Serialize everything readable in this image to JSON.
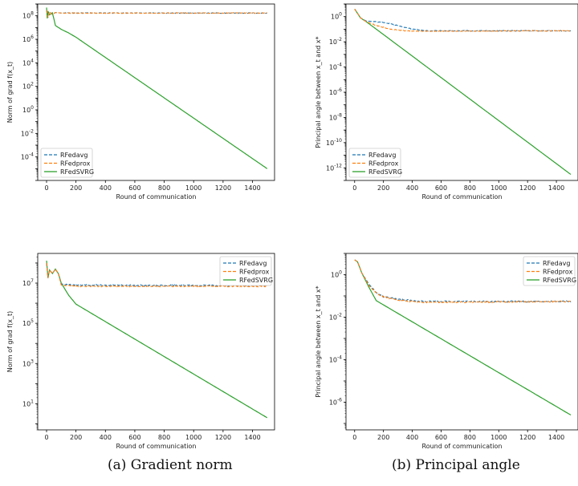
{
  "colors": {
    "RFedavg": "#1f77b4",
    "RFedprox": "#ff7f0e",
    "RFedSVRG": "#2ca02c"
  },
  "captions": {
    "a": "(a) Gradient norm",
    "b": "(b) Principal angle"
  },
  "chart_data": [
    {
      "type": "line",
      "xlabel": "Round of communication",
      "ylabel": "Norm of grad f(x_t)",
      "log_y": true,
      "xlim": [
        -60,
        1550
      ],
      "ylim": [
        1e-06,
        1000000000.0
      ],
      "xticks": [
        "0",
        "200",
        "400",
        "600",
        "800",
        "1000",
        "1200",
        "1400"
      ],
      "yticks": [
        "10^8",
        "10^6",
        "10^4",
        "10^2",
        "10^0",
        "10^-2",
        "10^-4"
      ],
      "legend": "bottom-left",
      "series": [
        {
          "name": "RFedavg",
          "style": "dashed",
          "x": [
            0,
            10,
            20,
            40,
            60,
            80,
            100,
            1500
          ],
          "y": [
            300000000.0,
            70000000.0,
            220000000.0,
            130000000.0,
            190000000.0,
            180000000.0,
            170000000.0,
            170000000.0
          ]
        },
        {
          "name": "RFedprox",
          "style": "dashed",
          "x": [
            0,
            10,
            20,
            40,
            60,
            80,
            100,
            1500
          ],
          "y": [
            300000000.0,
            70000000.0,
            220000000.0,
            130000000.0,
            190000000.0,
            180000000.0,
            170000000.0,
            170000000.0
          ]
        },
        {
          "name": "RFedSVRG",
          "style": "solid",
          "x": [
            0,
            5,
            10,
            20,
            40,
            60,
            100,
            150,
            200,
            1500
          ],
          "y": [
            500000000.0,
            60000000.0,
            250000000.0,
            120000000.0,
            180000000.0,
            15000000.0,
            7000000.0,
            3500000.0,
            1500000.0,
            1e-05
          ]
        }
      ]
    },
    {
      "type": "line",
      "xlabel": "Round of communication",
      "ylabel": "Principal angle between x_t and x*",
      "log_y": true,
      "xlim": [
        -60,
        1550
      ],
      "ylim": [
        1e-13,
        10
      ],
      "xticks": [
        "0",
        "200",
        "400",
        "600",
        "800",
        "1000",
        "1200",
        "1400"
      ],
      "yticks": [
        "10^0",
        "10^-2",
        "10^-4",
        "10^-6",
        "10^-8",
        "10^-10",
        "10^-12"
      ],
      "legend": "bottom-left",
      "series": [
        {
          "name": "RFedavg",
          "style": "dashed",
          "x": [
            0,
            40,
            80,
            200,
            300,
            400,
            500,
            1500
          ],
          "y": [
            4,
            0.8,
            0.45,
            0.35,
            0.2,
            0.1,
            0.075,
            0.075
          ]
        },
        {
          "name": "RFedprox",
          "style": "dashed",
          "x": [
            0,
            40,
            80,
            150,
            250,
            350,
            500,
            1500
          ],
          "y": [
            4,
            0.8,
            0.4,
            0.2,
            0.1,
            0.075,
            0.07,
            0.075
          ]
        },
        {
          "name": "RFedSVRG",
          "style": "solid",
          "x": [
            0,
            40,
            80,
            1500
          ],
          "y": [
            4,
            0.8,
            0.4,
            3e-13
          ]
        }
      ]
    },
    {
      "type": "line",
      "xlabel": "Round of communication",
      "ylabel": "Norm of grad f(x_t)",
      "log_y": true,
      "xlim": [
        -60,
        1550
      ],
      "ylim": [
        0.5,
        300000000.0
      ],
      "xticks": [
        "0",
        "200",
        "400",
        "600",
        "800",
        "1000",
        "1200",
        "1400"
      ],
      "yticks": [
        "10^7",
        "10^5",
        "10^3",
        "10^1"
      ],
      "legend": "top-right",
      "series": [
        {
          "name": "RFedavg",
          "style": "dashed",
          "x": [
            0,
            10,
            20,
            40,
            60,
            80,
            100,
            200,
            1500
          ],
          "y": [
            100000000.0,
            18000000.0,
            45000000.0,
            30000000.0,
            50000000.0,
            30000000.0,
            9000000.0,
            8000000.0,
            7500000.0
          ]
        },
        {
          "name": "RFedprox",
          "style": "dashed",
          "x": [
            0,
            10,
            20,
            40,
            60,
            80,
            100,
            200,
            1500
          ],
          "y": [
            100000000.0,
            18000000.0,
            45000000.0,
            30000000.0,
            50000000.0,
            30000000.0,
            8000000.0,
            7000000.0,
            7000000.0
          ]
        },
        {
          "name": "RFedSVRG",
          "style": "solid",
          "x": [
            0,
            10,
            20,
            40,
            60,
            80,
            100,
            150,
            200,
            1500
          ],
          "y": [
            130000000.0,
            18000000.0,
            45000000.0,
            30000000.0,
            50000000.0,
            30000000.0,
            10000000.0,
            2500000.0,
            900000.0,
            2
          ]
        }
      ]
    },
    {
      "type": "line",
      "xlabel": "Round of communication",
      "ylabel": "Principal angle between x_t and x*",
      "log_y": true,
      "xlim": [
        -60,
        1550
      ],
      "ylim": [
        5e-08,
        10
      ],
      "xticks": [
        "0",
        "200",
        "400",
        "600",
        "800",
        "1000",
        "1200",
        "1400"
      ],
      "yticks": [
        "10^0",
        "10^-2",
        "10^-4",
        "10^-6"
      ],
      "legend": "top-right",
      "series": [
        {
          "name": "RFedavg",
          "style": "dashed",
          "x": [
            0,
            20,
            50,
            100,
            150,
            200,
            300,
            400,
            500,
            1500
          ],
          "y": [
            5,
            4,
            1.2,
            0.35,
            0.15,
            0.09,
            0.07,
            0.06,
            0.055,
            0.055
          ]
        },
        {
          "name": "RFedprox",
          "style": "dashed",
          "x": [
            0,
            20,
            50,
            100,
            150,
            200,
            300,
            400,
            500,
            1500
          ],
          "y": [
            5,
            4,
            1.2,
            0.3,
            0.14,
            0.09,
            0.065,
            0.055,
            0.05,
            0.055
          ]
        },
        {
          "name": "RFedSVRG",
          "style": "solid",
          "x": [
            0,
            20,
            50,
            100,
            150,
            1500
          ],
          "y": [
            5,
            4,
            1.2,
            0.25,
            0.06,
            2.5e-07
          ]
        }
      ]
    }
  ]
}
